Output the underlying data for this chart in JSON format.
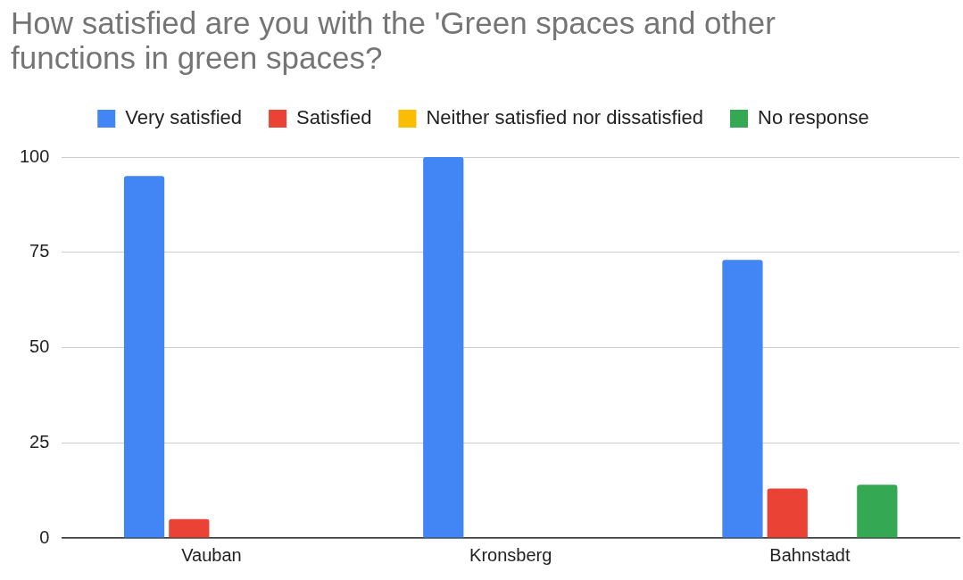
{
  "chart_data": {
    "type": "bar",
    "title": "How satisfied are you with the 'Green spaces and other functions in green spaces?",
    "categories": [
      "Vauban",
      "Kronsberg",
      "Bahnstadt"
    ],
    "series": [
      {
        "name": "Very satisfied",
        "color": "#4285f4",
        "values": [
          95,
          100,
          73
        ]
      },
      {
        "name": "Satisfied",
        "color": "#ea4335",
        "values": [
          5,
          null,
          13
        ]
      },
      {
        "name": "Neither satisfied nor dissatisfied",
        "color": "#fbbc04",
        "values": [
          null,
          null,
          null
        ]
      },
      {
        "name": "No response",
        "color": "#34a853",
        "values": [
          null,
          null,
          14
        ]
      }
    ],
    "ylim": [
      0,
      100
    ],
    "yticks": [
      0,
      25,
      50,
      75,
      100
    ],
    "grid": "y",
    "legend": "top"
  }
}
